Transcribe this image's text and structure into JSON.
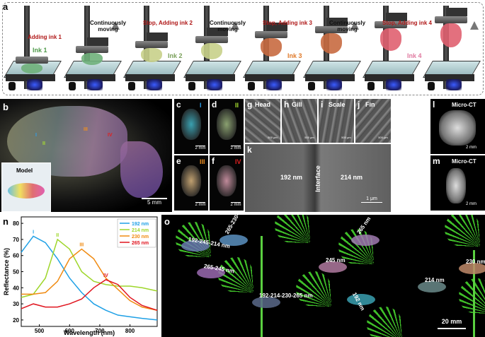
{
  "panel_a": {
    "letter": "a",
    "steps": [
      {
        "label": "Adding ink 1",
        "ink": "Ink 1"
      },
      {
        "label": "Continuously moving"
      },
      {
        "label": "Stop, Adding ink 2",
        "ink": "Ink 2"
      },
      {
        "label": "Continuously moving"
      },
      {
        "label": "Stop, Adding ink 3",
        "ink": "Ink 3"
      },
      {
        "label": "Continuously moving"
      },
      {
        "label": "Stop, Adding ink 4",
        "ink": "Ink 4"
      }
    ]
  },
  "panel_b": {
    "letter": "b",
    "inset": "Model",
    "scale": "5 mm",
    "markers": [
      "I",
      "II",
      "III",
      "IV"
    ]
  },
  "panels_cf": [
    {
      "letter": "c",
      "roman": "I",
      "scale": "2 mm"
    },
    {
      "letter": "d",
      "roman": "II",
      "scale": "2 mm"
    },
    {
      "letter": "e",
      "roman": "III",
      "scale": "2 mm"
    },
    {
      "letter": "f",
      "roman": "IV",
      "scale": "2 mm"
    }
  ],
  "panels_gj": [
    {
      "letter": "g",
      "name": "Head",
      "scale": "500 μm"
    },
    {
      "letter": "h",
      "name": "Gill",
      "scale": "500 μm"
    },
    {
      "letter": "i",
      "name": "Scale",
      "scale": "500 μm"
    },
    {
      "letter": "j",
      "name": "Fin",
      "scale": "500 μm"
    }
  ],
  "panel_k": {
    "letter": "k",
    "left": "192 nm",
    "interface": "Interface",
    "right": "214 nm",
    "scale": "1 μm"
  },
  "panels_lm": [
    {
      "letter": "l",
      "label": "Micro-CT",
      "scale": "2 mm"
    },
    {
      "letter": "m",
      "label": "Micro-CT",
      "scale": "2 mm"
    }
  ],
  "panel_o": {
    "letter": "o",
    "labels": [
      "192-245-214 nm",
      "265-230-214-192 nm",
      "265-245 nm",
      "192-214-230-265 nm",
      "265 nm",
      "245 nm",
      "192 nm",
      "214 nm",
      "230 nm"
    ],
    "scale": "20 mm"
  },
  "chart_data": {
    "type": "line",
    "letter": "n",
    "xlabel": "Wavelength (nm)",
    "ylabel": "Reflectance (%)",
    "x": [
      440,
      480,
      520,
      560,
      600,
      640,
      680,
      720,
      760,
      800,
      840,
      890
    ],
    "series": [
      {
        "name": "192 nm",
        "color": "#1ea0e6",
        "peak_label": "I",
        "values": [
          62,
          72,
          68,
          58,
          46,
          37,
          30,
          26,
          23,
          22,
          21,
          20
        ]
      },
      {
        "name": "214 nm",
        "color": "#9ed62a",
        "peak_label": "II",
        "values": [
          34,
          36,
          46,
          70,
          64,
          50,
          44,
          42,
          41,
          41,
          40,
          38
        ]
      },
      {
        "name": "230 nm",
        "color": "#f08a10",
        "peak_label": "III",
        "values": [
          36,
          36,
          37,
          44,
          58,
          64,
          58,
          46,
          39,
          32,
          28,
          26
        ]
      },
      {
        "name": "265 nm",
        "color": "#e0141e",
        "peak_label": "IV",
        "values": [
          27,
          30,
          28,
          28,
          30,
          33,
          40,
          45,
          42,
          34,
          29,
          26
        ]
      }
    ],
    "xlim": [
      440,
      890
    ],
    "ylim": [
      16,
      84
    ],
    "xticks": [
      500,
      600,
      700,
      800
    ],
    "yticks": [
      20,
      30,
      40,
      50,
      60,
      70,
      80
    ],
    "legend": "upper right"
  }
}
